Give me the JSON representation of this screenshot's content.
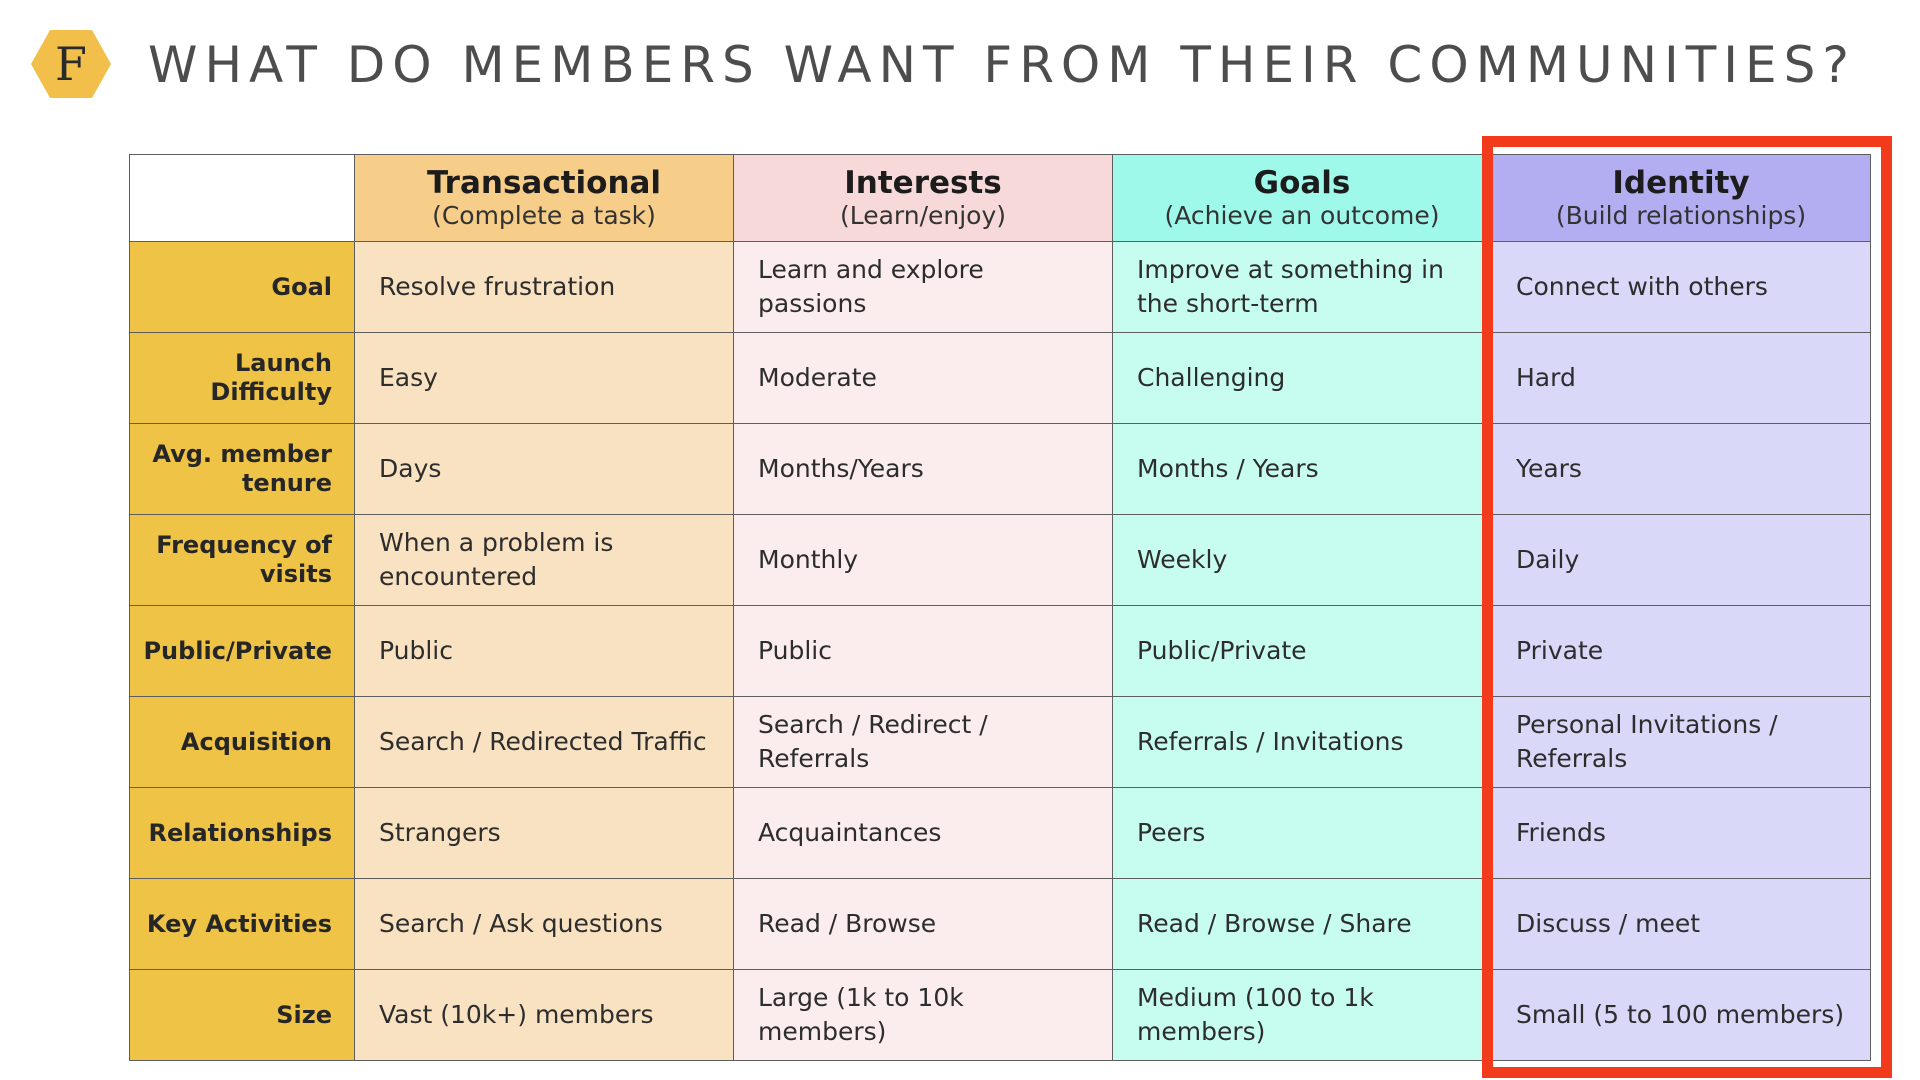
{
  "title": "WHAT DO MEMBERS WANT FROM THEIR COMMUNITIES?",
  "logo": {
    "letter": "F",
    "icon": "hexagon-logo-icon",
    "color": "#f2c04a"
  },
  "columns": [
    {
      "name": "Transactional",
      "sub": "(Complete a task)"
    },
    {
      "name": "Interests",
      "sub": "(Learn/enjoy)"
    },
    {
      "name": "Goals",
      "sub": "(Achieve an outcome)"
    },
    {
      "name": "Identity",
      "sub": "(Build relationships)"
    }
  ],
  "rows": [
    {
      "label": "Goal",
      "cells": [
        "Resolve frustration",
        "Learn and explore passions",
        "Improve at something in the short-term",
        "Connect with others"
      ]
    },
    {
      "label": "Launch Difficulty",
      "cells": [
        "Easy",
        "Moderate",
        "Challenging",
        "Hard"
      ]
    },
    {
      "label": "Avg. member tenure",
      "cells": [
        "Days",
        "Months/Years",
        "Months / Years",
        "Years"
      ]
    },
    {
      "label": "Frequency of visits",
      "cells": [
        "When a problem is encountered",
        "Monthly",
        "Weekly",
        "Daily"
      ]
    },
    {
      "label": "Public/Private",
      "cells": [
        "Public",
        "Public",
        "Public/Private",
        "Private"
      ]
    },
    {
      "label": "Acquisition",
      "cells": [
        "Search / Redirected Traffic",
        "Search / Redirect / Referrals",
        "Referrals / Invitations",
        "Personal Invitations / Referrals"
      ]
    },
    {
      "label": "Relationships",
      "cells": [
        "Strangers",
        "Acquaintances",
        "Peers",
        "Friends"
      ]
    },
    {
      "label": "Key Activities",
      "cells": [
        "Search / Ask questions",
        "Read / Browse",
        "Read / Browse / Share",
        "Discuss / meet"
      ]
    },
    {
      "label": "Size",
      "cells": [
        "Vast (10k+) members",
        "Large (1k to 10k members)",
        "Medium (100 to 1k members)",
        "Small  (5 to 100 members)"
      ]
    }
  ],
  "colors": {
    "header": [
      "#f6cd89",
      "#f7d9d9",
      "#9ff9eb",
      "#b3aef2"
    ],
    "cells": [
      "#f9e2c1",
      "#fbeded",
      "#c7fdf1",
      "#d9d8f8"
    ],
    "row_label": "#efc446",
    "highlight_border": "#f23a1c"
  }
}
